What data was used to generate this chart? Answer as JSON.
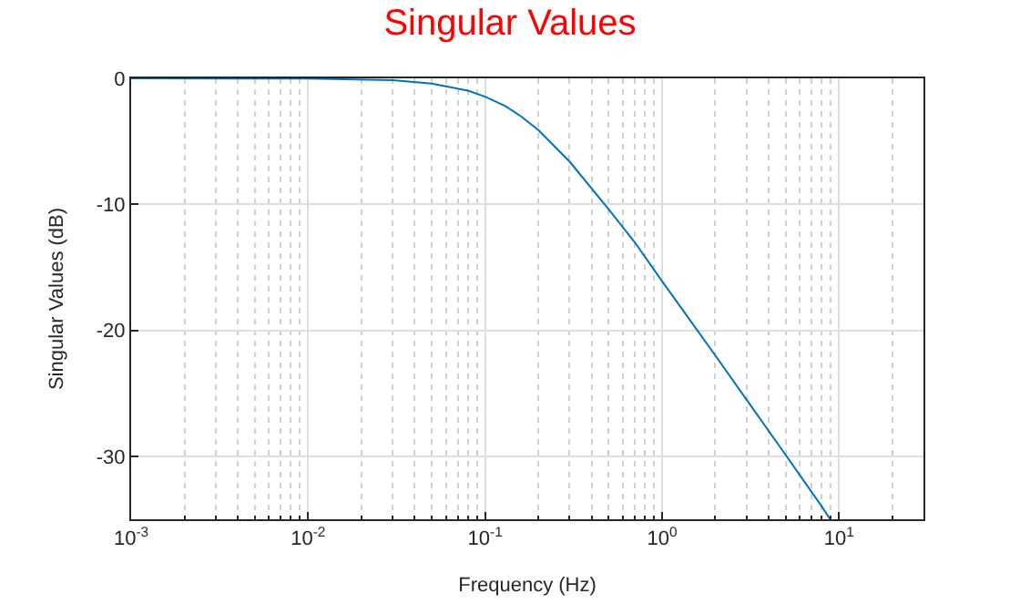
{
  "chart_data": {
    "type": "line",
    "title": "Singular Values",
    "xlabel": "Frequency (Hz)",
    "ylabel": "Singular Values (dB)",
    "log": "x",
    "grid": true,
    "marker": "none",
    "line_style": "solid",
    "x": [
      0.001,
      0.01,
      0.03,
      0.05,
      0.08,
      0.1,
      0.13,
      0.159,
      0.2,
      0.3,
      0.5,
      0.7,
      1,
      2,
      3,
      5,
      8,
      8.9
    ],
    "series": [
      {
        "color": "#0072bd",
        "values": [
          0,
          -0.02,
          -0.15,
          -0.41,
          -0.98,
          -1.46,
          -2.2,
          -3.0,
          -4.1,
          -6.6,
          -10.4,
          -13.0,
          -16.1,
          -22.0,
          -25.5,
          -29.9,
          -34.0,
          -35.0
        ]
      }
    ],
    "xlim": [
      0.001,
      30
    ],
    "ylim": [
      -35,
      0
    ],
    "xticks": [
      {
        "value": 0.001,
        "label": "10$^{-3}$"
      },
      {
        "value": 0.01,
        "label": "10$^{-2}$"
      },
      {
        "value": 0.1,
        "label": "10$^{-1}$"
      },
      {
        "value": 1,
        "label": "10$^{0}$"
      },
      {
        "value": 10,
        "label": "10$^{1}$"
      }
    ],
    "yticks": [
      -30,
      -20,
      -10,
      0
    ]
  }
}
